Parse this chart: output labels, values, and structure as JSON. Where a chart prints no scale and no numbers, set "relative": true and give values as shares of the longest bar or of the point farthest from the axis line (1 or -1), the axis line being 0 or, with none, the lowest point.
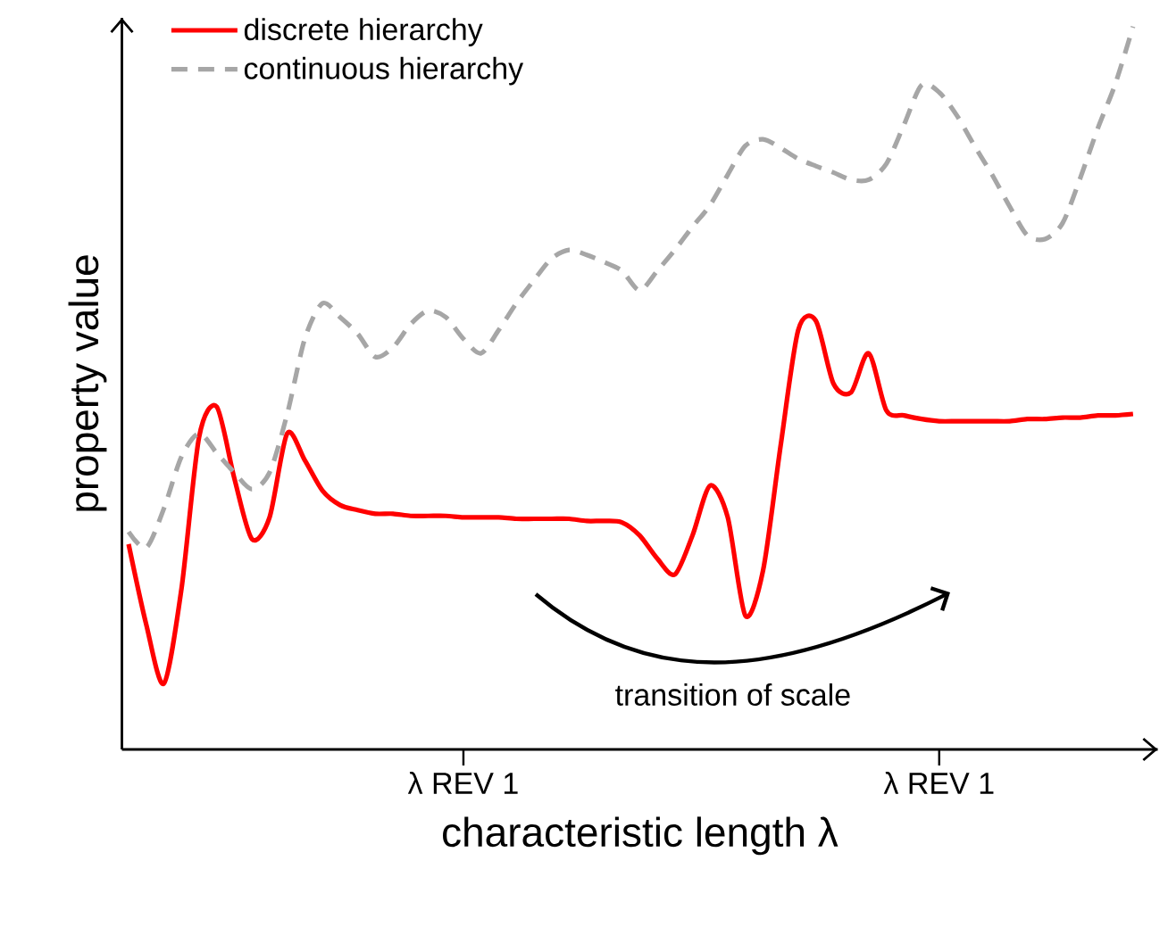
{
  "chart_data": {
    "type": "line",
    "xlabel": "characteristic length λ",
    "ylabel": "property value",
    "relative": true,
    "categories": [
      null,
      null,
      null,
      null,
      null,
      null,
      null,
      null,
      null,
      null,
      null,
      null,
      null,
      null,
      null,
      null,
      null,
      null,
      null,
      "λ REV 1",
      null,
      null,
      null,
      null,
      null,
      null,
      null,
      null,
      null,
      null,
      null,
      null,
      null,
      null,
      null,
      null,
      null,
      null,
      null,
      null,
      null,
      null,
      null,
      null,
      null,
      null,
      "λ REV 1",
      null,
      null,
      null,
      null,
      null,
      null,
      null,
      null,
      null,
      null,
      null
    ],
    "legend": "top left",
    "annotations": [
      "transition of scale"
    ],
    "series": [
      {
        "name": "discrete hierarchy",
        "color": "#ff0000",
        "line_style": "solid",
        "values": [
          0.284,
          0.173,
          0.091,
          0.222,
          0.432,
          0.474,
          0.375,
          0.291,
          0.321,
          0.437,
          0.4,
          0.358,
          0.338,
          0.331,
          0.326,
          0.326,
          0.323,
          0.323,
          0.323,
          0.321,
          0.321,
          0.321,
          0.319,
          0.319,
          0.319,
          0.319,
          0.316,
          0.316,
          0.314,
          0.296,
          0.264,
          0.242,
          0.296,
          0.365,
          0.321,
          0.185,
          0.247,
          0.42,
          0.58,
          0.593,
          0.506,
          0.494,
          0.548,
          0.469,
          0.462,
          0.457,
          0.454,
          0.454,
          0.454,
          0.454,
          0.454,
          0.457,
          0.457,
          0.459,
          0.459,
          0.462,
          0.462,
          0.464
        ]
      },
      {
        "name": "continuous hierarchy",
        "color": "#a6a6a6",
        "line_style": "dashed",
        "values": [
          0.301,
          0.279,
          0.333,
          0.405,
          0.437,
          0.41,
          0.383,
          0.36,
          0.383,
          0.464,
          0.568,
          0.617,
          0.598,
          0.575,
          0.543,
          0.556,
          0.588,
          0.607,
          0.598,
          0.568,
          0.548,
          0.58,
          0.617,
          0.649,
          0.679,
          0.691,
          0.684,
          0.674,
          0.662,
          0.635,
          0.662,
          0.691,
          0.723,
          0.753,
          0.795,
          0.835,
          0.844,
          0.832,
          0.817,
          0.807,
          0.798,
          0.788,
          0.788,
          0.81,
          0.864,
          0.919,
          0.909,
          0.877,
          0.835,
          0.795,
          0.751,
          0.711,
          0.706,
          0.728,
          0.79,
          0.859,
          0.921,
          1.0
        ]
      }
    ]
  }
}
